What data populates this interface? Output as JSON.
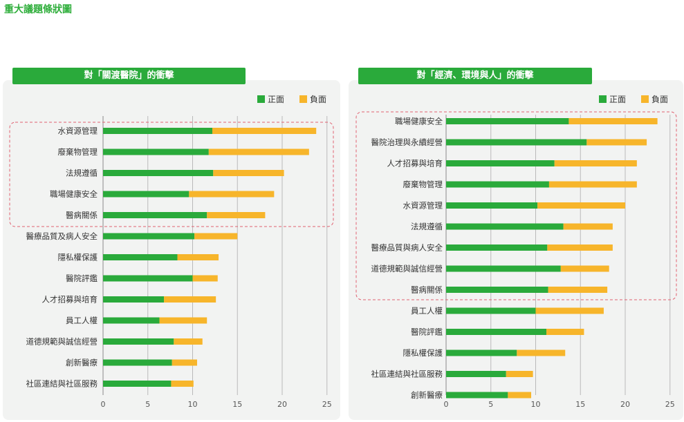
{
  "page_title": "重大議題條狀圖",
  "colors": {
    "positive": "#2aaa3b",
    "negative": "#f7b52b",
    "highlight_box": "#e06070"
  },
  "chart_data": [
    {
      "type": "bar",
      "orientation": "horizontal",
      "stacked": true,
      "title": "對「關渡醫院」的衝擊",
      "legend": [
        "正面",
        "負面"
      ],
      "legend_position": "top-right",
      "xlim": [
        0,
        25
      ],
      "xticks": [
        0,
        5,
        10,
        15,
        20,
        25
      ],
      "grid": true,
      "categories": [
        "水資源管理",
        "廢棄物管理",
        "法規遵循",
        "職場健康安全",
        "醫病關係",
        "醫療品質及病人安全",
        "隱私權保護",
        "醫院評鑑",
        "人才招募與培育",
        "員工人權",
        "道德規範與誠信經營",
        "創新醫療",
        "社區連結與社區服務"
      ],
      "series": [
        {
          "name": "正面",
          "values": [
            12.2,
            11.8,
            12.3,
            9.6,
            11.6,
            10.2,
            8.3,
            10.0,
            6.8,
            6.3,
            7.9,
            7.7,
            7.6
          ]
        },
        {
          "name": "負面",
          "values": [
            11.6,
            11.2,
            7.9,
            9.5,
            6.5,
            4.8,
            4.6,
            2.8,
            5.8,
            5.3,
            3.2,
            2.8,
            2.5
          ]
        }
      ],
      "highlight_count": 5
    },
    {
      "type": "bar",
      "orientation": "horizontal",
      "stacked": true,
      "title": "對「經濟、環境與人」的衝擊",
      "legend": [
        "正面",
        "負面"
      ],
      "legend_position": "top-right",
      "xlim": [
        0,
        25
      ],
      "xticks": [
        0,
        5,
        10,
        15,
        20,
        25
      ],
      "grid": true,
      "categories": [
        "職場健康安全",
        "醫院治理與永續經營",
        "人才招募與培育",
        "廢棄物管理",
        "水資源管理",
        "法規遵循",
        "醫療品質與病人安全",
        "道德規範與誠信經營",
        "醫病關係",
        "員工人權",
        "醫院評鑑",
        "隱私權保護",
        "社區連結與社區服務",
        "創新醫療"
      ],
      "series": [
        {
          "name": "正面",
          "values": [
            13.7,
            15.7,
            12.1,
            11.5,
            10.2,
            13.1,
            11.3,
            12.8,
            11.4,
            10.0,
            11.2,
            7.9,
            6.7,
            6.9
          ]
        },
        {
          "name": "負面",
          "values": [
            9.9,
            6.7,
            9.2,
            9.8,
            9.8,
            5.5,
            7.3,
            5.4,
            6.6,
            7.6,
            4.2,
            5.4,
            3.0,
            2.6
          ]
        }
      ],
      "highlight_count": 9
    }
  ]
}
